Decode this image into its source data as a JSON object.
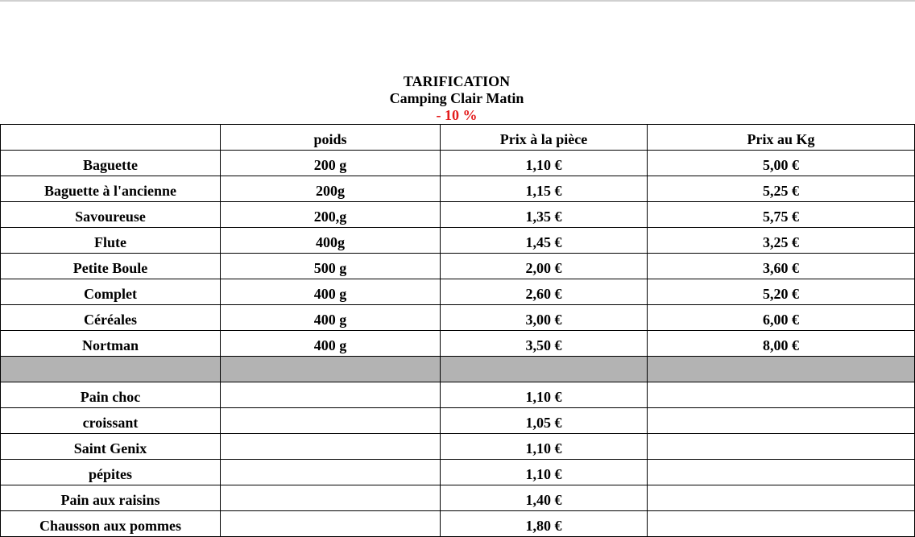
{
  "header": {
    "title": "TARIFICATION",
    "subtitle": "Camping Clair Matin",
    "discount": "- 10 %"
  },
  "table": {
    "columns": [
      "",
      "poids",
      "Prix à la pièce",
      "Prix au Kg"
    ],
    "breads": [
      {
        "name": "Baguette",
        "weight": "200 g",
        "unit_price": "1,10 €",
        "kg_price": "5,00 €"
      },
      {
        "name": "Baguette à l'ancienne",
        "weight": "200g",
        "unit_price": "1,15 €",
        "kg_price": "5,25 €"
      },
      {
        "name": "Savoureuse",
        "weight": "200,g",
        "unit_price": "1,35 €",
        "kg_price": "5,75 €"
      },
      {
        "name": "Flute",
        "weight": "400g",
        "unit_price": "1,45 €",
        "kg_price": "3,25 €"
      },
      {
        "name": "Petite Boule",
        "weight": "500 g",
        "unit_price": "2,00 €",
        "kg_price": "3,60 €"
      },
      {
        "name": "Complet",
        "weight": "400 g",
        "unit_price": "2,60 €",
        "kg_price": "5,20 €"
      },
      {
        "name": "Céréales",
        "weight": "400 g",
        "unit_price": "3,00 €",
        "kg_price": "6,00 €"
      },
      {
        "name": "Nortman",
        "weight": "400 g",
        "unit_price": "3,50 €",
        "kg_price": "8,00 €"
      }
    ],
    "pastries": [
      {
        "name": "Pain choc",
        "weight": "",
        "unit_price": "1,10 €",
        "kg_price": ""
      },
      {
        "name": "croissant",
        "weight": "",
        "unit_price": "1,05 €",
        "kg_price": ""
      },
      {
        "name": "Saint Genix",
        "weight": "",
        "unit_price": "1,10 €",
        "kg_price": ""
      },
      {
        "name": "pépites",
        "weight": "",
        "unit_price": "1,10 €",
        "kg_price": ""
      },
      {
        "name": "Pain aux raisins",
        "weight": "",
        "unit_price": "1,40 €",
        "kg_price": ""
      },
      {
        "name": "Chausson aux pommes",
        "weight": "",
        "unit_price": "1,80 €",
        "kg_price": ""
      }
    ]
  },
  "colors": {
    "discount": "#e31b1b",
    "separator": "#b3b3b3",
    "border": "#000000"
  }
}
